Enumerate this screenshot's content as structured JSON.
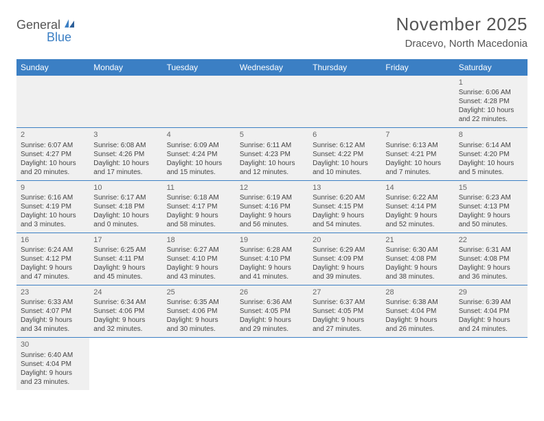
{
  "logo": {
    "text1": "General",
    "text2": "Blue"
  },
  "title": "November 2025",
  "location": "Dracevo, North Macedonia",
  "colors": {
    "header_bg": "#3b7fc4",
    "header_text": "#ffffff",
    "cell_bg": "#f0f0f0",
    "border": "#3b7fc4",
    "text": "#444444"
  },
  "day_headers": [
    "Sunday",
    "Monday",
    "Tuesday",
    "Wednesday",
    "Thursday",
    "Friday",
    "Saturday"
  ],
  "weeks": [
    [
      null,
      null,
      null,
      null,
      null,
      null,
      {
        "n": "1",
        "sr": "Sunrise: 6:06 AM",
        "ss": "Sunset: 4:28 PM",
        "dl": "Daylight: 10 hours and 22 minutes."
      }
    ],
    [
      {
        "n": "2",
        "sr": "Sunrise: 6:07 AM",
        "ss": "Sunset: 4:27 PM",
        "dl": "Daylight: 10 hours and 20 minutes."
      },
      {
        "n": "3",
        "sr": "Sunrise: 6:08 AM",
        "ss": "Sunset: 4:26 PM",
        "dl": "Daylight: 10 hours and 17 minutes."
      },
      {
        "n": "4",
        "sr": "Sunrise: 6:09 AM",
        "ss": "Sunset: 4:24 PM",
        "dl": "Daylight: 10 hours and 15 minutes."
      },
      {
        "n": "5",
        "sr": "Sunrise: 6:11 AM",
        "ss": "Sunset: 4:23 PM",
        "dl": "Daylight: 10 hours and 12 minutes."
      },
      {
        "n": "6",
        "sr": "Sunrise: 6:12 AM",
        "ss": "Sunset: 4:22 PM",
        "dl": "Daylight: 10 hours and 10 minutes."
      },
      {
        "n": "7",
        "sr": "Sunrise: 6:13 AM",
        "ss": "Sunset: 4:21 PM",
        "dl": "Daylight: 10 hours and 7 minutes."
      },
      {
        "n": "8",
        "sr": "Sunrise: 6:14 AM",
        "ss": "Sunset: 4:20 PM",
        "dl": "Daylight: 10 hours and 5 minutes."
      }
    ],
    [
      {
        "n": "9",
        "sr": "Sunrise: 6:16 AM",
        "ss": "Sunset: 4:19 PM",
        "dl": "Daylight: 10 hours and 3 minutes."
      },
      {
        "n": "10",
        "sr": "Sunrise: 6:17 AM",
        "ss": "Sunset: 4:18 PM",
        "dl": "Daylight: 10 hours and 0 minutes."
      },
      {
        "n": "11",
        "sr": "Sunrise: 6:18 AM",
        "ss": "Sunset: 4:17 PM",
        "dl": "Daylight: 9 hours and 58 minutes."
      },
      {
        "n": "12",
        "sr": "Sunrise: 6:19 AM",
        "ss": "Sunset: 4:16 PM",
        "dl": "Daylight: 9 hours and 56 minutes."
      },
      {
        "n": "13",
        "sr": "Sunrise: 6:20 AM",
        "ss": "Sunset: 4:15 PM",
        "dl": "Daylight: 9 hours and 54 minutes."
      },
      {
        "n": "14",
        "sr": "Sunrise: 6:22 AM",
        "ss": "Sunset: 4:14 PM",
        "dl": "Daylight: 9 hours and 52 minutes."
      },
      {
        "n": "15",
        "sr": "Sunrise: 6:23 AM",
        "ss": "Sunset: 4:13 PM",
        "dl": "Daylight: 9 hours and 50 minutes."
      }
    ],
    [
      {
        "n": "16",
        "sr": "Sunrise: 6:24 AM",
        "ss": "Sunset: 4:12 PM",
        "dl": "Daylight: 9 hours and 47 minutes."
      },
      {
        "n": "17",
        "sr": "Sunrise: 6:25 AM",
        "ss": "Sunset: 4:11 PM",
        "dl": "Daylight: 9 hours and 45 minutes."
      },
      {
        "n": "18",
        "sr": "Sunrise: 6:27 AM",
        "ss": "Sunset: 4:10 PM",
        "dl": "Daylight: 9 hours and 43 minutes."
      },
      {
        "n": "19",
        "sr": "Sunrise: 6:28 AM",
        "ss": "Sunset: 4:10 PM",
        "dl": "Daylight: 9 hours and 41 minutes."
      },
      {
        "n": "20",
        "sr": "Sunrise: 6:29 AM",
        "ss": "Sunset: 4:09 PM",
        "dl": "Daylight: 9 hours and 39 minutes."
      },
      {
        "n": "21",
        "sr": "Sunrise: 6:30 AM",
        "ss": "Sunset: 4:08 PM",
        "dl": "Daylight: 9 hours and 38 minutes."
      },
      {
        "n": "22",
        "sr": "Sunrise: 6:31 AM",
        "ss": "Sunset: 4:08 PM",
        "dl": "Daylight: 9 hours and 36 minutes."
      }
    ],
    [
      {
        "n": "23",
        "sr": "Sunrise: 6:33 AM",
        "ss": "Sunset: 4:07 PM",
        "dl": "Daylight: 9 hours and 34 minutes."
      },
      {
        "n": "24",
        "sr": "Sunrise: 6:34 AM",
        "ss": "Sunset: 4:06 PM",
        "dl": "Daylight: 9 hours and 32 minutes."
      },
      {
        "n": "25",
        "sr": "Sunrise: 6:35 AM",
        "ss": "Sunset: 4:06 PM",
        "dl": "Daylight: 9 hours and 30 minutes."
      },
      {
        "n": "26",
        "sr": "Sunrise: 6:36 AM",
        "ss": "Sunset: 4:05 PM",
        "dl": "Daylight: 9 hours and 29 minutes."
      },
      {
        "n": "27",
        "sr": "Sunrise: 6:37 AM",
        "ss": "Sunset: 4:05 PM",
        "dl": "Daylight: 9 hours and 27 minutes."
      },
      {
        "n": "28",
        "sr": "Sunrise: 6:38 AM",
        "ss": "Sunset: 4:04 PM",
        "dl": "Daylight: 9 hours and 26 minutes."
      },
      {
        "n": "29",
        "sr": "Sunrise: 6:39 AM",
        "ss": "Sunset: 4:04 PM",
        "dl": "Daylight: 9 hours and 24 minutes."
      }
    ],
    [
      {
        "n": "30",
        "sr": "Sunrise: 6:40 AM",
        "ss": "Sunset: 4:04 PM",
        "dl": "Daylight: 9 hours and 23 minutes."
      },
      null,
      null,
      null,
      null,
      null,
      null
    ]
  ]
}
